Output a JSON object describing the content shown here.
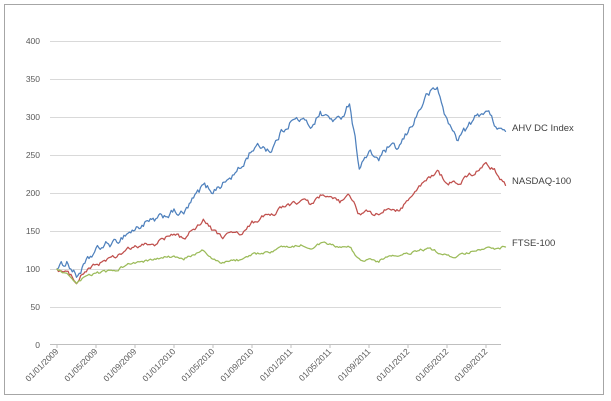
{
  "figure": {
    "background": "#ffffff",
    "border_color": "#a6a6a6"
  },
  "chart_data": {
    "type": "line",
    "title": "",
    "xlabel": "",
    "ylabel": "",
    "ylim": [
      0,
      400
    ],
    "grid": "horizontal-only",
    "legend_position": "right-of-line-ends",
    "y_ticks": [
      400,
      350,
      300,
      250,
      200,
      150,
      100,
      50,
      0
    ],
    "x_tick_labels": [
      "01/01/2009",
      "01/05/2009",
      "01/09/2009",
      "01/01/2010",
      "01/05/2010",
      "01/09/2010",
      "01/01/2011",
      "01/05/2011",
      "01/09/2011",
      "01/01/2012",
      "01/05/2012",
      "01/09/2012"
    ],
    "x_tick_month_indices": [
      0,
      4,
      8,
      12,
      16,
      20,
      24,
      28,
      32,
      36,
      40,
      44
    ],
    "months": [
      "2009-01",
      "2009-02",
      "2009-03",
      "2009-04",
      "2009-05",
      "2009-06",
      "2009-07",
      "2009-08",
      "2009-09",
      "2009-10",
      "2009-11",
      "2009-12",
      "2010-01",
      "2010-02",
      "2010-03",
      "2010-04",
      "2010-05",
      "2010-06",
      "2010-07",
      "2010-08",
      "2010-09",
      "2010-10",
      "2010-11",
      "2010-12",
      "2011-01",
      "2011-02",
      "2011-03",
      "2011-04",
      "2011-05",
      "2011-06",
      "2011-07",
      "2011-08",
      "2011-09",
      "2011-10",
      "2011-11",
      "2011-12",
      "2012-01",
      "2012-02",
      "2012-03",
      "2012-04",
      "2012-05",
      "2012-06",
      "2012-07",
      "2012-08",
      "2012-09",
      "2012-10",
      "2012-11"
    ],
    "series": [
      {
        "name": "AHV DC Index",
        "color": "#4F81BD",
        "values": [
          100,
          110,
          90,
          108,
          124,
          132,
          134,
          146,
          152,
          160,
          163,
          170,
          175,
          172,
          192,
          210,
          203,
          212,
          222,
          235,
          258,
          262,
          256,
          280,
          295,
          297,
          288,
          305,
          298,
          295,
          320,
          235,
          252,
          245,
          260,
          258,
          280,
          305,
          330,
          338,
          295,
          272,
          285,
          300,
          310,
          290,
          281
        ]
      },
      {
        "name": "NASDAQ-100",
        "color": "#C0504D",
        "values": [
          100,
          95,
          85,
          98,
          105,
          112,
          115,
          124,
          128,
          132,
          133,
          140,
          145,
          140,
          152,
          165,
          150,
          142,
          148,
          145,
          160,
          168,
          170,
          180,
          185,
          190,
          185,
          195,
          193,
          188,
          196,
          172,
          175,
          170,
          180,
          178,
          190,
          205,
          218,
          228,
          215,
          212,
          220,
          228,
          240,
          228,
          210
        ]
      },
      {
        "name": "FTSE-100",
        "color": "#9BBB59",
        "values": [
          100,
          92,
          80,
          90,
          95,
          96,
          98,
          105,
          108,
          110,
          112,
          115,
          116,
          112,
          120,
          124,
          112,
          108,
          112,
          112,
          118,
          122,
          122,
          128,
          130,
          132,
          128,
          133,
          132,
          128,
          130,
          112,
          112,
          110,
          118,
          116,
          120,
          124,
          126,
          123,
          117,
          116,
          120,
          124,
          126,
          127,
          129
        ]
      }
    ],
    "style": {
      "gridline_color": "#d9d9d9",
      "axis_color": "#bfbfbf",
      "tick_label_color": "#595959",
      "legend_text_color": "#3f3f3f"
    }
  }
}
